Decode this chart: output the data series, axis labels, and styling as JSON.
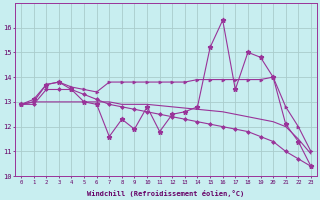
{
  "xlabel": "Windchill (Refroidissement éolien,°C)",
  "background_color": "#c8eef0",
  "grid_color": "#aacccc",
  "line_color": "#993399",
  "x_hours": [
    0,
    1,
    2,
    3,
    4,
    5,
    6,
    7,
    8,
    9,
    10,
    11,
    12,
    13,
    14,
    15,
    16,
    17,
    18,
    19,
    20,
    21,
    22,
    23
  ],
  "series_zigzag": [
    12.9,
    13.1,
    13.7,
    13.8,
    13.5,
    13.0,
    12.9,
    11.6,
    12.3,
    11.9,
    12.8,
    11.8,
    12.5,
    12.6,
    12.8,
    15.2,
    16.3,
    13.5,
    15.0,
    14.8,
    14.0,
    12.1,
    11.4,
    10.4
  ],
  "series_upper": [
    12.9,
    13.0,
    13.7,
    13.8,
    13.6,
    13.5,
    13.4,
    13.8,
    13.8,
    13.8,
    13.8,
    13.8,
    13.8,
    13.8,
    13.9,
    13.9,
    13.9,
    13.9,
    13.9,
    13.9,
    14.0,
    12.8,
    12.0,
    11.0
  ],
  "trend_flat": [
    12.9,
    13.0,
    13.0,
    13.0,
    13.0,
    13.0,
    13.0,
    13.0,
    12.9,
    12.9,
    12.9,
    12.85,
    12.8,
    12.75,
    12.7,
    12.65,
    12.6,
    12.5,
    12.4,
    12.3,
    12.2,
    12.0,
    11.5,
    10.9
  ],
  "trend_decline": [
    12.9,
    12.9,
    13.5,
    13.5,
    13.5,
    13.3,
    13.1,
    12.9,
    12.8,
    12.7,
    12.6,
    12.5,
    12.4,
    12.3,
    12.2,
    12.1,
    12.0,
    11.9,
    11.8,
    11.6,
    11.4,
    11.0,
    10.7,
    10.4
  ],
  "ylim": [
    10,
    17
  ],
  "yticks": [
    10,
    11,
    12,
    13,
    14,
    15,
    16
  ],
  "xticks": [
    0,
    1,
    2,
    3,
    4,
    5,
    6,
    7,
    8,
    9,
    10,
    11,
    12,
    13,
    14,
    15,
    16,
    17,
    18,
    19,
    20,
    21,
    22,
    23
  ]
}
